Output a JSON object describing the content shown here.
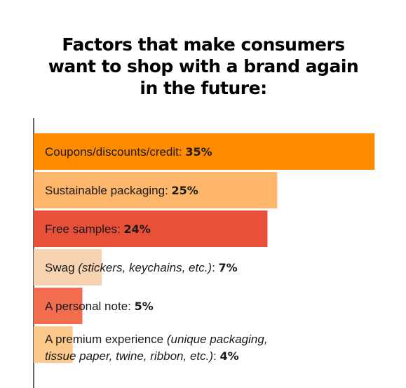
{
  "chart_data": {
    "type": "bar",
    "orientation": "horizontal",
    "title_lines": [
      "Factors that make consumers",
      "want to shop with a brand again",
      "in the future:"
    ],
    "xlim": [
      0,
      38
    ],
    "grid": false,
    "bars": [
      {
        "label": "Coupons/discounts/credit: ",
        "note": "",
        "value": 35,
        "value_label": "35%",
        "color": "#FF8C00"
      },
      {
        "label": "Sustainable packaging: ",
        "note": "",
        "value": 25,
        "value_label": "25%",
        "color": "#FDB66A"
      },
      {
        "label": "Free samples: ",
        "note": "",
        "value": 24,
        "value_label": "24%",
        "color": "#E8503A"
      },
      {
        "label": "Swag ",
        "note": "(stickers, keychains, etc.)",
        "value": 7,
        "value_label": "7%",
        "color": "#F7D3B2"
      },
      {
        "label": "A personal note: ",
        "note": "",
        "value": 5,
        "value_label": "5%",
        "color": "#F26D4F"
      },
      {
        "label": "A premium experience ",
        "note": "(unique packaging,",
        "note2": "tissue paper, twine, ribbon, etc.)",
        "value": 4,
        "value_label": "4%",
        "color": "#FDC98A"
      }
    ]
  }
}
